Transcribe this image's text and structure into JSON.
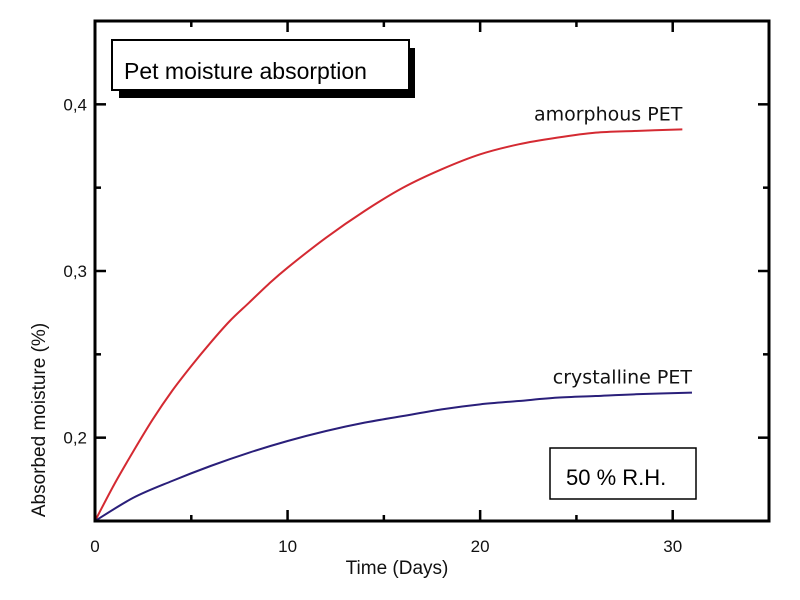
{
  "chart_data": {
    "type": "line",
    "title": "Pet moisture absorption",
    "xlabel": "Time (Days)",
    "ylabel": "Absorbed moisture (%)",
    "xlim": [
      0,
      35
    ],
    "ylim": [
      0.15,
      0.45
    ],
    "x_ticks": [
      0,
      5,
      10,
      15,
      20,
      25,
      30
    ],
    "x_tick_labels": [
      "0",
      "10",
      "20",
      "30"
    ],
    "x_tick_label_values": [
      0,
      10,
      20,
      30
    ],
    "y_ticks": [
      0.15,
      0.2,
      0.25,
      0.3,
      0.35,
      0.4
    ],
    "y_tick_labels": [
      "0,2",
      "0,3",
      "0,4"
    ],
    "y_tick_label_values": [
      0.2,
      0.3,
      0.4
    ],
    "grid": false,
    "annotation": "50 % R.H.",
    "series": [
      {
        "name": "amorphous PET",
        "color": "#d42a32",
        "x": [
          0,
          1,
          2,
          3,
          4,
          5,
          6,
          7,
          8,
          9,
          10,
          12,
          14,
          16,
          18,
          20,
          22,
          24,
          26,
          28,
          30.5
        ],
        "y": [
          0.15,
          0.172,
          0.192,
          0.211,
          0.228,
          0.243,
          0.257,
          0.27,
          0.281,
          0.292,
          0.302,
          0.32,
          0.336,
          0.35,
          0.361,
          0.37,
          0.376,
          0.38,
          0.383,
          0.384,
          0.385
        ]
      },
      {
        "name": "crystalline PET",
        "color": "#2a1f7a",
        "x": [
          0,
          2,
          4,
          6,
          8,
          10,
          12,
          14,
          16,
          18,
          20,
          22,
          24,
          26,
          28,
          31
        ],
        "y": [
          0.15,
          0.164,
          0.174,
          0.183,
          0.191,
          0.198,
          0.204,
          0.209,
          0.213,
          0.217,
          0.22,
          0.222,
          0.224,
          0.225,
          0.226,
          0.227
        ]
      }
    ]
  }
}
